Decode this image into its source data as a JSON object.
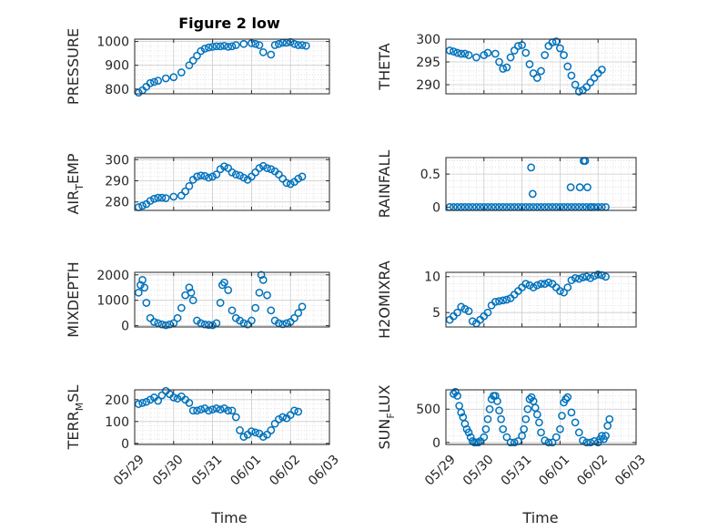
{
  "figure": {
    "title": "Figure 2 low",
    "marker_color": "#0072bd",
    "grid_color": "#d9d9d9",
    "axis_color": "#262626"
  },
  "chart_data": [
    {
      "type": "scatter",
      "panel": "pressure",
      "ylabel_main": "PRESSURE",
      "ylabel_sub": "",
      "ylabel_tail": "",
      "ylim": [
        780,
        1010
      ],
      "yticks": [
        800,
        900,
        1000
      ],
      "xlim": [
        "05/29",
        "06/03"
      ],
      "xticks": [],
      "grid": true,
      "x": [
        0.1,
        0.2,
        0.3,
        0.4,
        0.5,
        0.6,
        0.8,
        1.0,
        1.2,
        1.4,
        1.5,
        1.6,
        1.7,
        1.8,
        1.9,
        2.0,
        2.1,
        2.2,
        2.3,
        2.4,
        2.5,
        2.6,
        2.8,
        3.0,
        3.1,
        3.2,
        3.3,
        3.5,
        3.6,
        3.7,
        3.8,
        3.9,
        4.0,
        4.1,
        4.2,
        4.3,
        4.4
      ],
      "y": [
        785,
        795,
        810,
        825,
        830,
        835,
        845,
        850,
        870,
        900,
        920,
        940,
        960,
        970,
        975,
        978,
        980,
        980,
        982,
        978,
        980,
        985,
        990,
        993,
        990,
        985,
        955,
        945,
        985,
        990,
        995,
        995,
        998,
        990,
        985,
        985,
        982
      ]
    },
    {
      "type": "scatter",
      "panel": "theta",
      "ylabel_main": "THETA",
      "ylabel_sub": "",
      "ylabel_tail": "",
      "ylim": [
        288,
        300
      ],
      "yticks": [
        290,
        295,
        300
      ],
      "xlim": [
        "05/29",
        "06/03"
      ],
      "xticks": [],
      "grid": true,
      "x": [
        0.1,
        0.2,
        0.3,
        0.4,
        0.5,
        0.6,
        0.8,
        1.0,
        1.1,
        1.3,
        1.4,
        1.5,
        1.6,
        1.7,
        1.8,
        1.9,
        2.0,
        2.1,
        2.2,
        2.3,
        2.4,
        2.5,
        2.6,
        2.7,
        2.8,
        2.9,
        3.0,
        3.1,
        3.2,
        3.3,
        3.4,
        3.5,
        3.6,
        3.7,
        3.8,
        3.9,
        4.0,
        4.1
      ],
      "y": [
        297.5,
        297.3,
        297.0,
        296.8,
        296.8,
        296.5,
        296.0,
        296.5,
        297.0,
        296.8,
        295.0,
        293.5,
        293.8,
        296.0,
        297.5,
        298.5,
        298.7,
        297.0,
        294.5,
        292.5,
        291.5,
        293.0,
        296.5,
        298.5,
        299.3,
        299.5,
        298.0,
        296.5,
        294.0,
        292.0,
        290.0,
        288.5,
        288.8,
        289.5,
        290.5,
        291.5,
        292.5,
        293.3
      ]
    },
    {
      "type": "scatter",
      "panel": "air_temp",
      "ylabel_main": "AIR",
      "ylabel_sub": "T",
      "ylabel_tail": "EMP",
      "ylim": [
        276,
        301
      ],
      "yticks": [
        280,
        290,
        300
      ],
      "xlim": [
        "05/29",
        "06/03"
      ],
      "xticks": [],
      "grid": true,
      "x": [
        0.1,
        0.2,
        0.3,
        0.4,
        0.5,
        0.6,
        0.7,
        0.8,
        1.0,
        1.2,
        1.3,
        1.4,
        1.5,
        1.6,
        1.7,
        1.8,
        1.9,
        2.0,
        2.1,
        2.2,
        2.3,
        2.4,
        2.5,
        2.6,
        2.7,
        2.8,
        2.9,
        3.0,
        3.1,
        3.2,
        3.3,
        3.4,
        3.5,
        3.6,
        3.7,
        3.8,
        3.9,
        4.0,
        4.1,
        4.2,
        4.3
      ],
      "y": [
        277.5,
        278.2,
        279.0,
        280.5,
        281.5,
        282.0,
        282.0,
        281.8,
        282.5,
        283.0,
        285.0,
        287.5,
        290.5,
        292.0,
        292.5,
        292.3,
        291.5,
        292.0,
        293.0,
        295.5,
        296.8,
        296.0,
        294.0,
        293.0,
        292.5,
        291.5,
        290.5,
        292.0,
        294.0,
        296.0,
        297.0,
        296.0,
        295.5,
        294.5,
        293.0,
        291.0,
        289.0,
        288.5,
        289.5,
        291.0,
        292.0
      ]
    },
    {
      "type": "scatter",
      "panel": "rainfall",
      "ylabel_main": "RAINFALL",
      "ylabel_sub": "",
      "ylabel_tail": "",
      "ylim": [
        -0.05,
        0.75
      ],
      "yticks": [
        0,
        0.5
      ],
      "xlim": [
        "05/29",
        "06/03"
      ],
      "xticks": [],
      "grid": true,
      "x": [
        0.1,
        0.2,
        0.3,
        0.4,
        0.5,
        0.6,
        0.7,
        0.8,
        0.9,
        1.0,
        1.1,
        1.2,
        1.3,
        1.4,
        1.5,
        1.6,
        1.7,
        1.8,
        1.9,
        2.0,
        2.1,
        2.2,
        2.3,
        2.4,
        2.5,
        2.6,
        2.7,
        2.8,
        2.9,
        3.0,
        3.1,
        3.2,
        3.3,
        3.4,
        3.5,
        3.6,
        3.7,
        3.8,
        3.9,
        4.0,
        4.1,
        4.2,
        2.24,
        2.28,
        3.28,
        3.52,
        3.62,
        3.66,
        3.72,
        3.82
      ],
      "y": [
        0,
        0,
        0,
        0,
        0,
        0,
        0,
        0,
        0,
        0,
        0,
        0,
        0,
        0,
        0,
        0,
        0,
        0,
        0,
        0,
        0,
        0,
        0,
        0,
        0,
        0,
        0,
        0,
        0,
        0,
        0,
        0,
        0,
        0,
        0,
        0,
        0,
        0,
        0,
        0,
        0,
        0,
        0.6,
        0.2,
        0.3,
        0.3,
        0.7,
        0.7,
        0.3,
        0
      ]
    },
    {
      "type": "scatter",
      "panel": "mixdepth",
      "ylabel_main": "MIXDEPTH",
      "ylabel_sub": "",
      "ylabel_tail": "",
      "ylim": [
        -50,
        2100
      ],
      "yticks": [
        0,
        1000,
        2000
      ],
      "xlim": [
        "05/29",
        "06/03"
      ],
      "xticks": [],
      "grid": true,
      "x": [
        0.1,
        0.15,
        0.2,
        0.25,
        0.3,
        0.4,
        0.5,
        0.6,
        0.7,
        0.8,
        0.9,
        1.0,
        1.1,
        1.2,
        1.3,
        1.4,
        1.45,
        1.5,
        1.6,
        1.7,
        1.8,
        1.9,
        2.0,
        2.1,
        2.2,
        2.25,
        2.3,
        2.4,
        2.5,
        2.6,
        2.7,
        2.8,
        2.9,
        3.0,
        3.1,
        3.2,
        3.25,
        3.3,
        3.4,
        3.5,
        3.6,
        3.7,
        3.8,
        3.9,
        4.0,
        4.1,
        4.2,
        4.3
      ],
      "y": [
        1300,
        1600,
        1800,
        1500,
        900,
        300,
        150,
        100,
        50,
        20,
        50,
        100,
        300,
        700,
        1200,
        1500,
        1300,
        1000,
        200,
        100,
        50,
        30,
        20,
        100,
        900,
        1600,
        1700,
        1400,
        600,
        300,
        200,
        100,
        50,
        200,
        700,
        1300,
        2000,
        1800,
        1200,
        600,
        200,
        100,
        60,
        100,
        150,
        300,
        500,
        750
      ]
    },
    {
      "type": "scatter",
      "panel": "h2omixra",
      "ylabel_main": "H2OMIXRA",
      "ylabel_sub": "",
      "ylabel_tail": "",
      "ylim": [
        3,
        10.6
      ],
      "yticks": [
        5,
        10
      ],
      "xlim": [
        "05/29",
        "06/03"
      ],
      "xticks": [],
      "grid": true,
      "x": [
        0.1,
        0.2,
        0.3,
        0.4,
        0.5,
        0.6,
        0.7,
        0.8,
        0.9,
        1.0,
        1.1,
        1.2,
        1.3,
        1.4,
        1.5,
        1.6,
        1.7,
        1.8,
        1.9,
        2.0,
        2.1,
        2.2,
        2.3,
        2.4,
        2.5,
        2.6,
        2.7,
        2.8,
        2.9,
        3.0,
        3.1,
        3.2,
        3.3,
        3.4,
        3.5,
        3.6,
        3.7,
        3.8,
        3.9,
        4.0,
        4.1,
        4.2
      ],
      "y": [
        4.0,
        4.5,
        5.0,
        5.8,
        5.5,
        5.2,
        3.8,
        3.5,
        4.0,
        4.5,
        5.0,
        6.0,
        6.5,
        6.6,
        6.7,
        6.8,
        7.0,
        7.5,
        8.0,
        8.5,
        9.0,
        8.8,
        8.5,
        8.8,
        9.0,
        9.0,
        9.2,
        9.0,
        8.5,
        8.0,
        7.8,
        8.5,
        9.5,
        9.8,
        9.7,
        9.9,
        10.0,
        9.8,
        10.1,
        10.3,
        10.2,
        10.0
      ]
    },
    {
      "type": "scatter",
      "panel": "terr_msl",
      "ylabel_main": "TERR",
      "ylabel_sub": "M",
      "ylabel_tail": "SL",
      "ylim": [
        -5,
        245
      ],
      "yticks": [
        0,
        100,
        200
      ],
      "xlim": [
        "05/29",
        "06/03"
      ],
      "xticks": [],
      "grid": true,
      "x": [
        0.1,
        0.2,
        0.3,
        0.4,
        0.5,
        0.6,
        0.7,
        0.8,
        0.9,
        1.0,
        1.1,
        1.2,
        1.3,
        1.4,
        1.5,
        1.6,
        1.7,
        1.8,
        1.9,
        2.0,
        2.1,
        2.2,
        2.3,
        2.4,
        2.5,
        2.6,
        2.7,
        2.8,
        2.9,
        3.0,
        3.1,
        3.2,
        3.3,
        3.4,
        3.5,
        3.6,
        3.7,
        3.8,
        3.9,
        4.0,
        4.1,
        4.2
      ],
      "y": [
        180,
        185,
        190,
        200,
        210,
        195,
        220,
        240,
        225,
        210,
        205,
        215,
        200,
        185,
        150,
        150,
        155,
        160,
        150,
        155,
        160,
        155,
        160,
        150,
        150,
        120,
        60,
        30,
        40,
        55,
        50,
        45,
        30,
        40,
        60,
        90,
        110,
        120,
        115,
        130,
        150,
        145
      ]
    },
    {
      "type": "scatter",
      "panel": "sun_flux",
      "ylabel_main": "SUN",
      "ylabel_sub": "F",
      "ylabel_tail": "LUX",
      "ylim": [
        -30,
        790
      ],
      "yticks": [
        0,
        500
      ],
      "xlim": [
        "05/29",
        "06/03"
      ],
      "xticks": [
        "05/29",
        "05/30",
        "05/31",
        "06/01",
        "06/02",
        "06/03"
      ],
      "xlabel": "Time",
      "grid": true,
      "x": [
        0.2,
        0.25,
        0.3,
        0.35,
        0.4,
        0.45,
        0.5,
        0.55,
        0.6,
        0.65,
        0.7,
        0.75,
        0.8,
        0.85,
        0.9,
        1.0,
        1.05,
        1.1,
        1.15,
        1.2,
        1.25,
        1.3,
        1.35,
        1.4,
        1.45,
        1.5,
        1.6,
        1.7,
        1.8,
        1.9,
        2.0,
        2.05,
        2.1,
        2.15,
        2.2,
        2.25,
        2.3,
        2.35,
        2.4,
        2.45,
        2.5,
        2.6,
        2.7,
        2.8,
        2.9,
        3.0,
        3.05,
        3.1,
        3.15,
        3.2,
        3.3,
        3.4,
        3.5,
        3.6,
        3.7,
        3.8,
        3.9,
        4.0,
        4.05,
        4.1,
        4.15,
        4.2,
        4.25,
        4.3
      ],
      "y": [
        730,
        760,
        700,
        550,
        450,
        380,
        280,
        200,
        150,
        80,
        20,
        0,
        0,
        0,
        20,
        80,
        200,
        350,
        500,
        650,
        700,
        700,
        620,
        480,
        350,
        200,
        80,
        0,
        0,
        20,
        100,
        200,
        350,
        500,
        650,
        680,
        620,
        520,
        420,
        300,
        150,
        30,
        0,
        0,
        80,
        200,
        400,
        600,
        650,
        680,
        450,
        300,
        150,
        30,
        0,
        0,
        20,
        0,
        50,
        100,
        50,
        100,
        250,
        350
      ]
    }
  ]
}
